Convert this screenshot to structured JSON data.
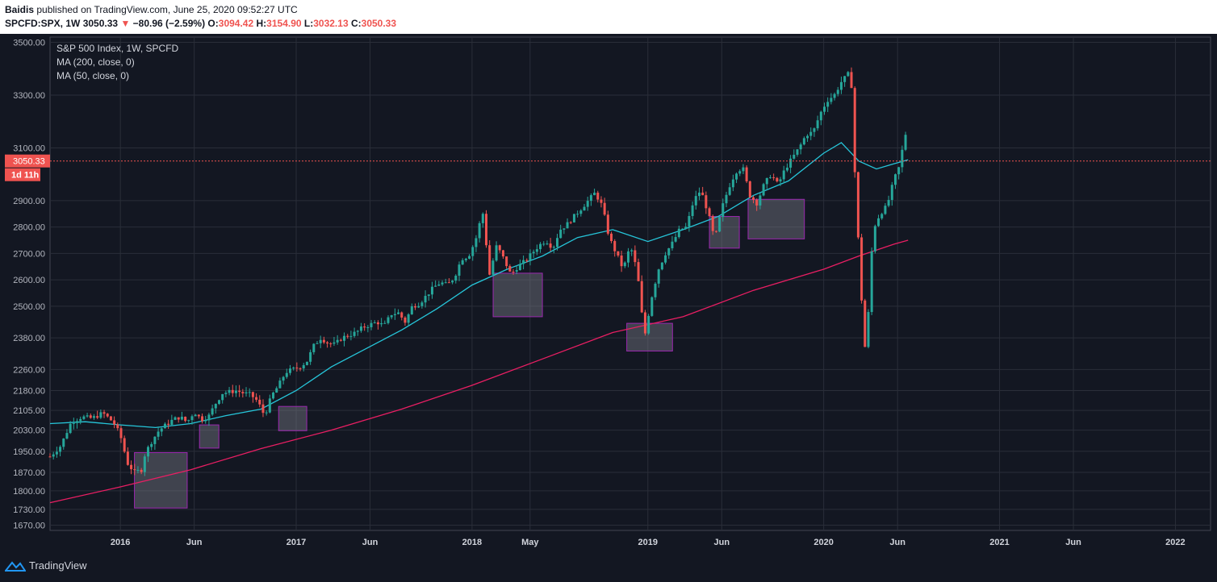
{
  "header": {
    "author": "Baidis",
    "published_text": "published on TradingView.com, June 25, 2020 09:52:27 UTC",
    "symbol": "SPCFD:SPX, 1W",
    "last": "3050.33",
    "change_arrow": "▼",
    "change": "−80.96 (−2.59%)",
    "o_label": "O:",
    "o_value": "3094.42",
    "h_label": "H:",
    "h_value": "3154.90",
    "l_label": "L:",
    "l_value": "3032.13",
    "c_label": "C:",
    "c_value": "3050.33"
  },
  "legend": {
    "title": "S&P 500 Index, 1W, SPCFD",
    "ma1": "MA (200, close, 0)",
    "ma2": "MA (50, close, 0)"
  },
  "price_badge": {
    "price": "3050.33",
    "countdown": "1d 11h"
  },
  "footer": {
    "brand": "TradingView"
  },
  "colors": {
    "background": "#131722",
    "grid": "#2a2e39",
    "up": "#26a69a",
    "down": "#ef5350",
    "ma50": "#26c6da",
    "ma200": "#e91e63",
    "zone_fill": "#787b86",
    "zone_border": "#9c27b0",
    "badge": "#ef5350"
  },
  "chart_data": {
    "type": "candlestick",
    "title": "S&P 500 Index, 1W, SPCFD",
    "y_ticks": [
      1670,
      1730,
      1800,
      1870,
      1950,
      2030,
      2105,
      2180,
      2260,
      2380,
      2500,
      2600,
      2700,
      2800,
      2900,
      3100,
      3300,
      3500
    ],
    "y_tick_labels": [
      "1670.00",
      "1730.00",
      "1800.00",
      "1870.00",
      "1950.00",
      "2030.00",
      "2105.00",
      "2180.00",
      "2260.00",
      "2380.00",
      "2500.00",
      "2600.00",
      "2700.00",
      "2800.00",
      "2900.00",
      "3100.00",
      "3300.00",
      "3500.00"
    ],
    "ylim": [
      1650,
      3520
    ],
    "x_ticks": [
      {
        "label": "2016",
        "t": 2016.0
      },
      {
        "label": "Jun",
        "t": 2016.42
      },
      {
        "label": "2017",
        "t": 2017.0
      },
      {
        "label": "Jun",
        "t": 2017.42
      },
      {
        "label": "2018",
        "t": 2018.0
      },
      {
        "label": "May",
        "t": 2018.33
      },
      {
        "label": "2019",
        "t": 2019.0
      },
      {
        "label": "Jun",
        "t": 2019.42
      },
      {
        "label": "2020",
        "t": 2020.0
      },
      {
        "label": "Jun",
        "t": 2020.42
      },
      {
        "label": "2021",
        "t": 2021.0
      },
      {
        "label": "Jun",
        "t": 2021.42
      },
      {
        "label": "2022",
        "t": 2022.0
      }
    ],
    "xlim": [
      2015.6,
      2022.2
    ],
    "grid": true,
    "price_line": 3050.33,
    "close_path": [
      [
        2015.6,
        1930
      ],
      [
        2015.66,
        1970
      ],
      [
        2015.72,
        2060
      ],
      [
        2015.78,
        2080
      ],
      [
        2015.84,
        2075
      ],
      [
        2015.9,
        2095
      ],
      [
        2015.96,
        2060
      ],
      [
        2016.0,
        2010
      ],
      [
        2016.04,
        1905
      ],
      [
        2016.08,
        1870
      ],
      [
        2016.12,
        1880
      ],
      [
        2016.14,
        1940
      ],
      [
        2016.18,
        1990
      ],
      [
        2016.22,
        2030
      ],
      [
        2016.26,
        2050
      ],
      [
        2016.3,
        2070
      ],
      [
        2016.34,
        2080
      ],
      [
        2016.38,
        2060
      ],
      [
        2016.42,
        2100
      ],
      [
        2016.46,
        2070
      ],
      [
        2016.5,
        2080
      ],
      [
        2016.54,
        2130
      ],
      [
        2016.58,
        2170
      ],
      [
        2016.62,
        2175
      ],
      [
        2016.66,
        2180
      ],
      [
        2016.7,
        2170
      ],
      [
        2016.74,
        2165
      ],
      [
        2016.78,
        2140
      ],
      [
        2016.82,
        2085
      ],
      [
        2016.86,
        2160
      ],
      [
        2016.9,
        2200
      ],
      [
        2016.94,
        2250
      ],
      [
        2016.98,
        2260
      ],
      [
        2017.02,
        2270
      ],
      [
        2017.06,
        2290
      ],
      [
        2017.1,
        2350
      ],
      [
        2017.14,
        2380
      ],
      [
        2017.18,
        2360
      ],
      [
        2017.22,
        2355
      ],
      [
        2017.26,
        2380
      ],
      [
        2017.3,
        2390
      ],
      [
        2017.34,
        2400
      ],
      [
        2017.38,
        2420
      ],
      [
        2017.42,
        2430
      ],
      [
        2017.46,
        2440
      ],
      [
        2017.5,
        2425
      ],
      [
        2017.54,
        2470
      ],
      [
        2017.58,
        2475
      ],
      [
        2017.62,
        2440
      ],
      [
        2017.66,
        2500
      ],
      [
        2017.7,
        2510
      ],
      [
        2017.74,
        2540
      ],
      [
        2017.78,
        2570
      ],
      [
        2017.82,
        2590
      ],
      [
        2017.86,
        2580
      ],
      [
        2017.9,
        2610
      ],
      [
        2017.94,
        2680
      ],
      [
        2017.98,
        2690
      ],
      [
        2018.02,
        2750
      ],
      [
        2018.06,
        2860
      ],
      [
        2018.1,
        2620
      ],
      [
        2018.14,
        2730
      ],
      [
        2018.18,
        2680
      ],
      [
        2018.22,
        2620
      ],
      [
        2018.26,
        2650
      ],
      [
        2018.3,
        2670
      ],
      [
        2018.34,
        2700
      ],
      [
        2018.38,
        2730
      ],
      [
        2018.42,
        2750
      ],
      [
        2018.46,
        2720
      ],
      [
        2018.5,
        2790
      ],
      [
        2018.54,
        2810
      ],
      [
        2018.58,
        2840
      ],
      [
        2018.62,
        2870
      ],
      [
        2018.66,
        2900
      ],
      [
        2018.7,
        2930
      ],
      [
        2018.74,
        2880
      ],
      [
        2018.78,
        2760
      ],
      [
        2018.82,
        2700
      ],
      [
        2018.86,
        2640
      ],
      [
        2018.9,
        2730
      ],
      [
        2018.94,
        2630
      ],
      [
        2018.98,
        2380
      ],
      [
        2019.02,
        2530
      ],
      [
        2019.06,
        2640
      ],
      [
        2019.1,
        2700
      ],
      [
        2019.14,
        2740
      ],
      [
        2019.18,
        2790
      ],
      [
        2019.22,
        2800
      ],
      [
        2019.26,
        2900
      ],
      [
        2019.3,
        2940
      ],
      [
        2019.34,
        2860
      ],
      [
        2019.38,
        2750
      ],
      [
        2019.42,
        2870
      ],
      [
        2019.46,
        2950
      ],
      [
        2019.5,
        3010
      ],
      [
        2019.54,
        3025
      ],
      [
        2019.58,
        2920
      ],
      [
        2019.62,
        2890
      ],
      [
        2019.66,
        2960
      ],
      [
        2019.7,
        3000
      ],
      [
        2019.74,
        2960
      ],
      [
        2019.78,
        3020
      ],
      [
        2019.82,
        3060
      ],
      [
        2019.86,
        3100
      ],
      [
        2019.9,
        3150
      ],
      [
        2019.94,
        3160
      ],
      [
        2019.98,
        3230
      ],
      [
        2020.02,
        3280
      ],
      [
        2020.06,
        3300
      ],
      [
        2020.1,
        3350
      ],
      [
        2020.14,
        3380
      ],
      [
        2020.16,
        3330
      ],
      [
        2020.18,
        2950
      ],
      [
        2020.2,
        2710
      ],
      [
        2020.22,
        2470
      ],
      [
        2020.24,
        2300
      ],
      [
        2020.26,
        2550
      ],
      [
        2020.28,
        2790
      ],
      [
        2020.32,
        2850
      ],
      [
        2020.36,
        2880
      ],
      [
        2020.4,
        2980
      ],
      [
        2020.44,
        3045
      ],
      [
        2020.46,
        3190
      ],
      [
        2020.48,
        3050
      ]
    ],
    "ma50": [
      [
        2015.6,
        2055
      ],
      [
        2015.8,
        2062
      ],
      [
        2016.0,
        2050
      ],
      [
        2016.2,
        2040
      ],
      [
        2016.4,
        2055
      ],
      [
        2016.6,
        2085
      ],
      [
        2016.8,
        2110
      ],
      [
        2017.0,
        2180
      ],
      [
        2017.2,
        2270
      ],
      [
        2017.4,
        2340
      ],
      [
        2017.6,
        2410
      ],
      [
        2017.8,
        2490
      ],
      [
        2018.0,
        2580
      ],
      [
        2018.2,
        2640
      ],
      [
        2018.4,
        2690
      ],
      [
        2018.6,
        2760
      ],
      [
        2018.8,
        2790
      ],
      [
        2019.0,
        2745
      ],
      [
        2019.2,
        2790
      ],
      [
        2019.4,
        2840
      ],
      [
        2019.6,
        2920
      ],
      [
        2019.8,
        2975
      ],
      [
        2020.0,
        3080
      ],
      [
        2020.1,
        3120
      ],
      [
        2020.2,
        3050
      ],
      [
        2020.3,
        3020
      ],
      [
        2020.4,
        3040
      ],
      [
        2020.48,
        3055
      ]
    ],
    "ma200": [
      [
        2015.6,
        1755
      ],
      [
        2016.0,
        1815
      ],
      [
        2016.4,
        1880
      ],
      [
        2016.8,
        1960
      ],
      [
        2017.2,
        2030
      ],
      [
        2017.6,
        2110
      ],
      [
        2018.0,
        2200
      ],
      [
        2018.4,
        2300
      ],
      [
        2018.8,
        2400
      ],
      [
        2019.2,
        2460
      ],
      [
        2019.6,
        2560
      ],
      [
        2020.0,
        2640
      ],
      [
        2020.2,
        2690
      ],
      [
        2020.4,
        2735
      ],
      [
        2020.48,
        2750
      ]
    ],
    "zones": [
      {
        "t0": 2016.08,
        "t1": 2016.38,
        "low": 1735,
        "high": 1945
      },
      {
        "t0": 2016.45,
        "t1": 2016.56,
        "low": 1962,
        "high": 2050
      },
      {
        "t0": 2016.9,
        "t1": 2017.06,
        "low": 2028,
        "high": 2120
      },
      {
        "t0": 2018.12,
        "t1": 2018.4,
        "low": 2460,
        "high": 2625
      },
      {
        "t0": 2018.88,
        "t1": 2019.14,
        "low": 2330,
        "high": 2435
      },
      {
        "t0": 2019.35,
        "t1": 2019.52,
        "low": 2720,
        "high": 2840
      },
      {
        "t0": 2019.57,
        "t1": 2019.89,
        "low": 2755,
        "high": 2905
      }
    ]
  }
}
